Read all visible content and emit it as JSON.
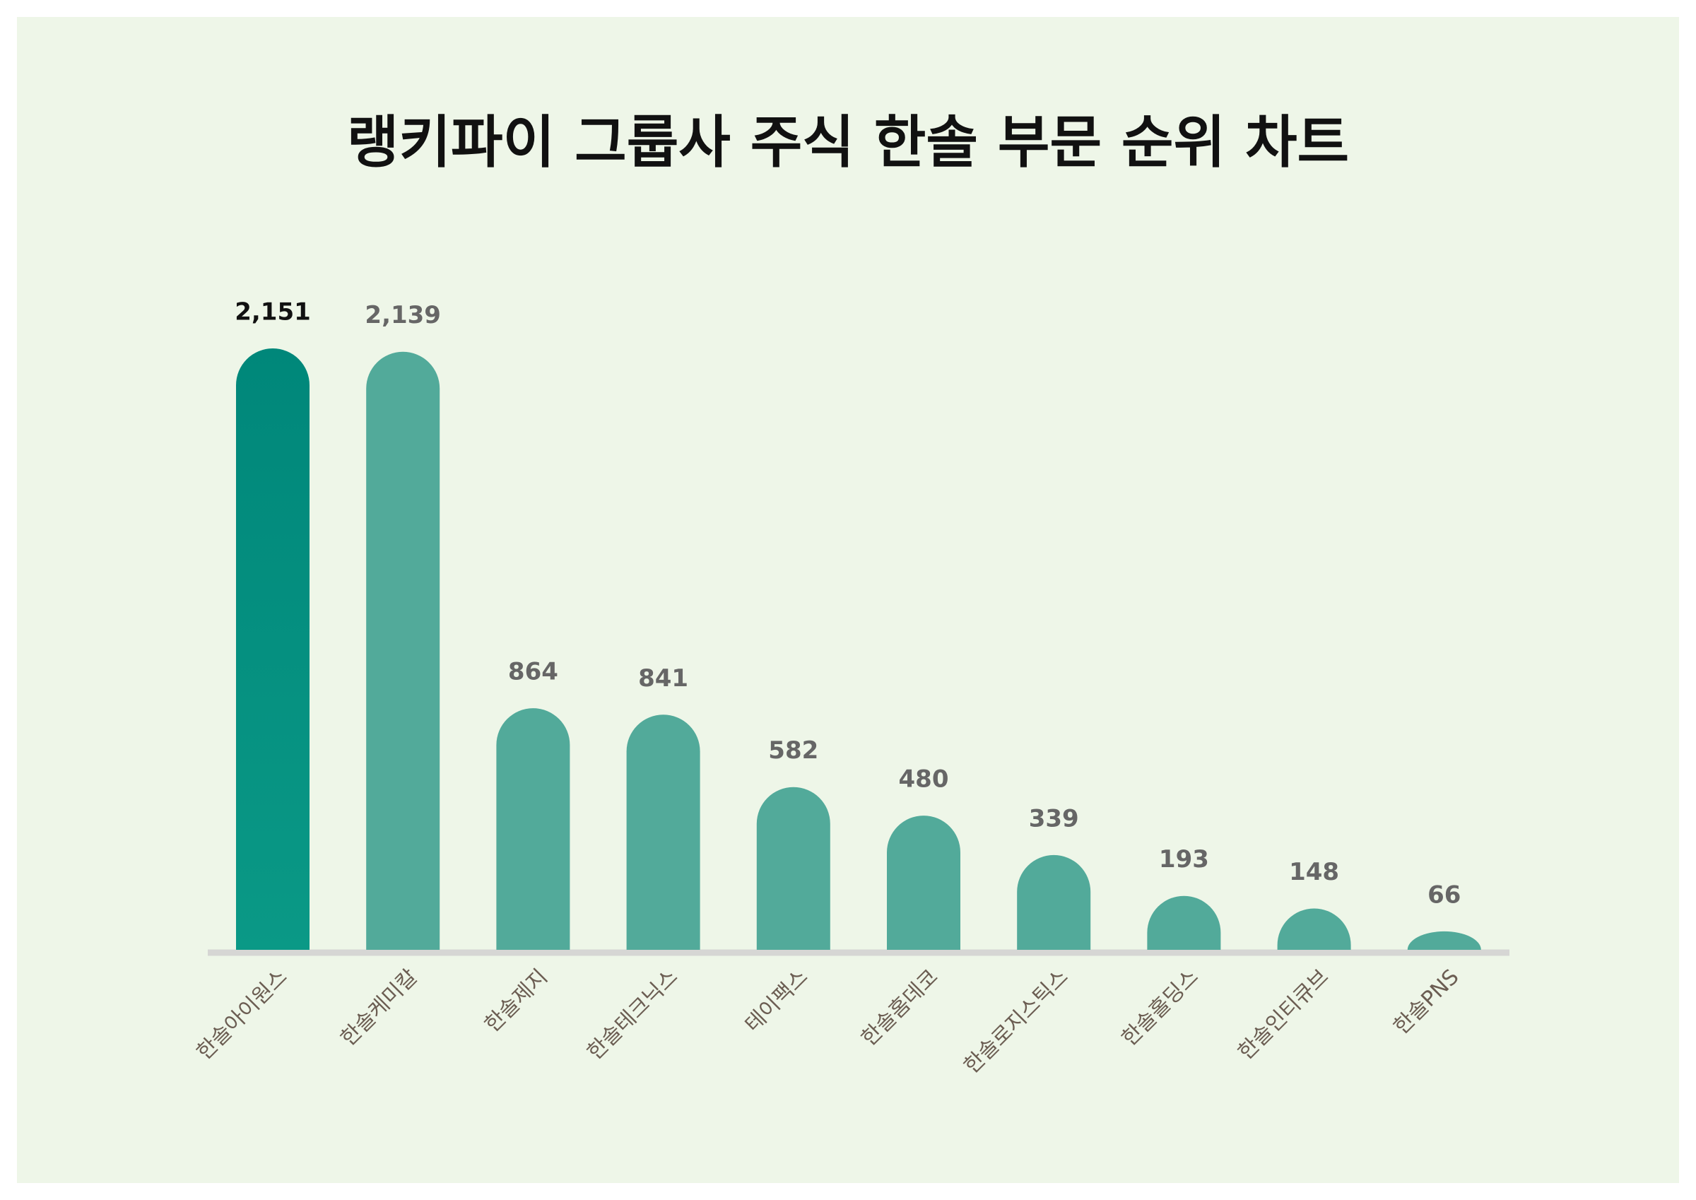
{
  "chart_data": {
    "type": "bar",
    "title": "랭키파이 그룹사 주식 한솔 부문 순위 차트",
    "categories": [
      "한솔아이원스",
      "한솔케미칼",
      "한솔제지",
      "한솔테크닉스",
      "테이팩스",
      "한솔홈데코",
      "한솔로지스틱스",
      "한솔홀딩스",
      "한솔인티큐브",
      "한솔PNS"
    ],
    "values": [
      2151,
      2139,
      864,
      841,
      582,
      480,
      339,
      193,
      148,
      66
    ],
    "value_labels": [
      "2,151",
      "2,139",
      "864",
      "841",
      "582",
      "480",
      "339",
      "193",
      "148",
      "66"
    ],
    "colors": [
      "#0a9986",
      "#52aa9a",
      "#52aa9a",
      "#52aa9a",
      "#52aa9a",
      "#52aa9a",
      "#52aa9a",
      "#52aa9a",
      "#52aa9a",
      "#52aa9a"
    ],
    "label_colors": [
      "#111111",
      "#666666",
      "#666666",
      "#666666",
      "#666666",
      "#666666",
      "#666666",
      "#666666",
      "#666666",
      "#666666"
    ]
  }
}
